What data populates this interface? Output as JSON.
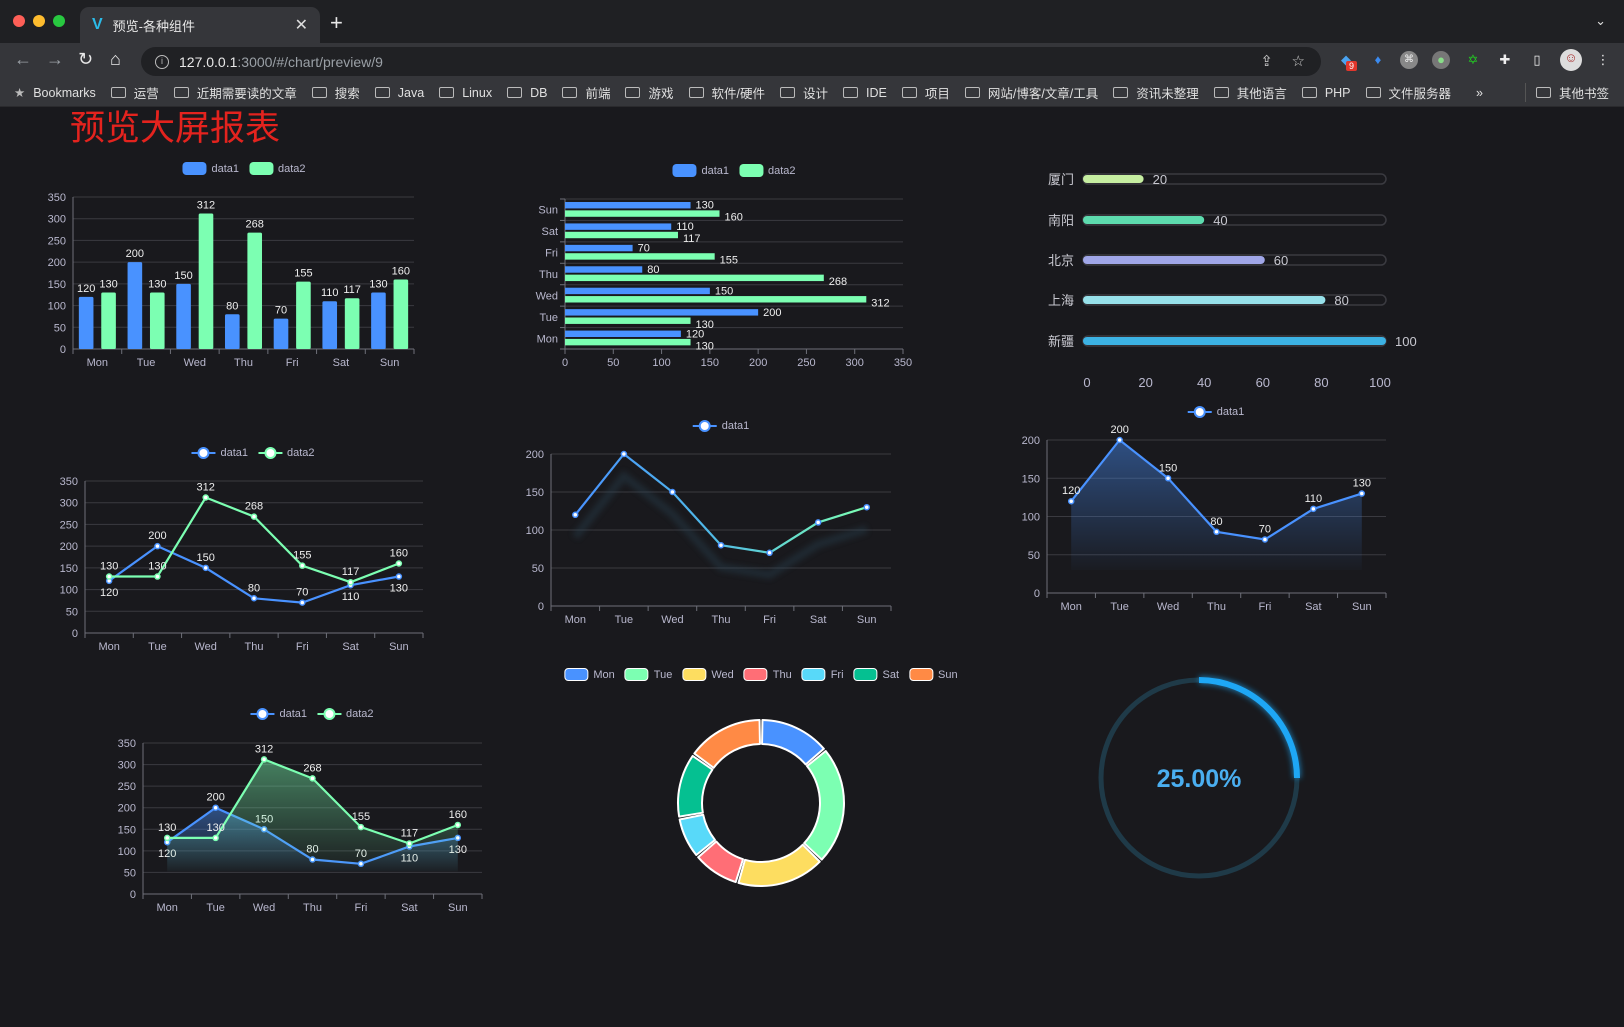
{
  "browser": {
    "tab_title": "预览-各种组件",
    "url_host": "127.0.0.1",
    "url_path": ":3000/#/chart/preview/9",
    "extension_badge": "9",
    "bookmarks": [
      "Bookmarks",
      "运营",
      "近期需要读的文章",
      "搜索",
      "Java",
      "Linux",
      "DB",
      "前端",
      "游戏",
      "软件/硬件",
      "设计",
      "IDE",
      "项目",
      "网站/博客/文章/工具",
      "资讯未整理",
      "其他语言",
      "PHP",
      "文件服务器"
    ],
    "bookmarks_overflow": "»",
    "other_bookmarks": "其他书签"
  },
  "page": {
    "title": "预览大屏报表"
  },
  "colors": {
    "data1": "#4992ff",
    "data2": "#7cffb2",
    "title": "#e4231e",
    "gauge": "#1ea7f5"
  },
  "chart_data": [
    {
      "type": "bar",
      "categories": [
        "Mon",
        "Tue",
        "Wed",
        "Thu",
        "Fri",
        "Sat",
        "Sun"
      ],
      "series": [
        {
          "name": "data1",
          "values": [
            120,
            200,
            150,
            80,
            70,
            110,
            130
          ]
        },
        {
          "name": "data2",
          "values": [
            130,
            130,
            312,
            268,
            155,
            117,
            160
          ]
        }
      ],
      "ylim": [
        0,
        350
      ],
      "yticks": [
        "0",
        "50",
        "100",
        "150",
        "200",
        "250",
        "300",
        "350"
      ],
      "data_labels": true,
      "legend": "top",
      "grid": true
    },
    {
      "type": "bar",
      "orientation": "horizontal",
      "categories": [
        "Mon",
        "Tue",
        "Wed",
        "Thu",
        "Fri",
        "Sat",
        "Sun"
      ],
      "series": [
        {
          "name": "data1",
          "values": [
            120,
            200,
            150,
            80,
            70,
            110,
            130
          ]
        },
        {
          "name": "data2",
          "values": [
            130,
            130,
            312,
            268,
            155,
            117,
            160
          ]
        }
      ],
      "xlim": [
        0,
        350
      ],
      "xticks": [
        "0",
        "50",
        "100",
        "150",
        "200",
        "250",
        "300",
        "350"
      ],
      "data_labels": true,
      "legend": "top",
      "grid": true
    },
    {
      "type": "bar",
      "orientation": "horizontal",
      "style": "progress",
      "categories": [
        "厦门",
        "南阳",
        "北京",
        "上海",
        "新疆"
      ],
      "values": [
        20,
        40,
        60,
        80,
        100
      ],
      "colors": [
        "#c6eea1",
        "#5ddbae",
        "#a0a6e8",
        "#97e1ea",
        "#3cb2e4"
      ],
      "xlim": [
        0,
        100
      ],
      "xticks": [
        "0",
        "20",
        "40",
        "60",
        "80",
        "100"
      ],
      "data_labels": true
    },
    {
      "type": "line",
      "categories": [
        "Mon",
        "Tue",
        "Wed",
        "Thu",
        "Fri",
        "Sat",
        "Sun"
      ],
      "series": [
        {
          "name": "data1",
          "values": [
            120,
            200,
            150,
            80,
            70,
            110,
            130
          ]
        },
        {
          "name": "data2",
          "values": [
            130,
            130,
            312,
            268,
            155,
            117,
            160
          ]
        }
      ],
      "ylim": [
        0,
        350
      ],
      "yticks": [
        "0",
        "50",
        "100",
        "150",
        "200",
        "250",
        "300",
        "350"
      ],
      "data_labels": true,
      "legend": "top",
      "grid": true
    },
    {
      "type": "line",
      "categories": [
        "Mon",
        "Tue",
        "Wed",
        "Thu",
        "Fri",
        "Sat",
        "Sun"
      ],
      "series": [
        {
          "name": "data1",
          "values": [
            120,
            200,
            150,
            80,
            70,
            110,
            130
          ]
        }
      ],
      "ylim": [
        0,
        200
      ],
      "yticks": [
        "0",
        "50",
        "100",
        "150",
        "200"
      ],
      "data_labels": false,
      "gradient": [
        "#4992ff",
        "#7cffb2"
      ],
      "legend": "top",
      "grid": true
    },
    {
      "type": "area",
      "categories": [
        "Mon",
        "Tue",
        "Wed",
        "Thu",
        "Fri",
        "Sat",
        "Sun"
      ],
      "series": [
        {
          "name": "data1",
          "values": [
            120,
            200,
            150,
            80,
            70,
            110,
            130
          ]
        }
      ],
      "ylim": [
        0,
        200
      ],
      "yticks": [
        "0",
        "50",
        "100",
        "150",
        "200"
      ],
      "data_labels": true,
      "legend": "top",
      "grid": true
    },
    {
      "type": "area",
      "categories": [
        "Mon",
        "Tue",
        "Wed",
        "Thu",
        "Fri",
        "Sat",
        "Sun"
      ],
      "series": [
        {
          "name": "data1",
          "values": [
            120,
            200,
            150,
            80,
            70,
            110,
            130
          ]
        },
        {
          "name": "data2",
          "values": [
            130,
            130,
            312,
            268,
            155,
            117,
            160
          ]
        }
      ],
      "ylim": [
        0,
        350
      ],
      "yticks": [
        "0",
        "50",
        "100",
        "150",
        "200",
        "250",
        "300",
        "350"
      ],
      "data_labels": true,
      "legend": "top",
      "grid": true
    },
    {
      "type": "pie",
      "style": "donut",
      "categories": [
        "Mon",
        "Tue",
        "Wed",
        "Thu",
        "Fri",
        "Sat",
        "Sun"
      ],
      "values": [
        120,
        200,
        150,
        80,
        70,
        110,
        130
      ],
      "colors": [
        "#4992ff",
        "#7cffb2",
        "#fddd60",
        "#ff6e76",
        "#58d9f9",
        "#05c091",
        "#ff8a45"
      ],
      "legend": "top"
    },
    {
      "type": "gauge",
      "style": "ring",
      "value": 25,
      "max": 100,
      "label": "25.00%"
    }
  ]
}
